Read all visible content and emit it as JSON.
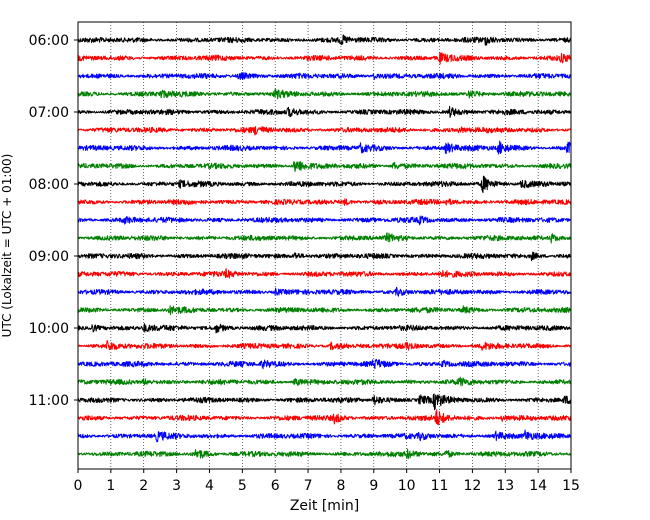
{
  "chart_data": {
    "type": "line",
    "title": "",
    "xlabel": "Zeit  [min]",
    "ylabel": "UTC (Lokalzeit = UTC + 01:00)",
    "xlim": [
      0,
      15
    ],
    "x_ticks": [
      0,
      1,
      2,
      3,
      4,
      5,
      6,
      7,
      8,
      9,
      10,
      11,
      12,
      13,
      14,
      15
    ],
    "x_tick_labels": [
      "0",
      "1",
      "2",
      "3",
      "4",
      "5",
      "6",
      "7",
      "8",
      "9",
      "10",
      "11",
      "12",
      "13",
      "14",
      "15"
    ],
    "y_tick_labels": [
      "06:00",
      "07:00",
      "08:00",
      "09:00",
      "10:00",
      "11:00"
    ],
    "vertical_grid": true,
    "trace_colors": [
      "#000000",
      "#ff0000",
      "#0000ff",
      "#008000"
    ],
    "traces": [
      {
        "start": "06:00",
        "events": [
          {
            "t": 8.0,
            "amp": 0.4
          },
          {
            "t": 12.4,
            "amp": 0.4
          }
        ]
      },
      {
        "start": "06:15",
        "events": [
          {
            "t": 11.0,
            "amp": 0.5
          },
          {
            "t": 14.7,
            "amp": 0.35
          }
        ]
      },
      {
        "start": "06:30",
        "events": [
          {
            "t": 4.9,
            "amp": 0.35
          },
          {
            "t": 9.0,
            "amp": 0.3
          }
        ]
      },
      {
        "start": "06:45",
        "events": [
          {
            "t": 2.5,
            "amp": 0.4
          },
          {
            "t": 6.0,
            "amp": 0.35
          },
          {
            "t": 11.9,
            "amp": 0.3
          }
        ]
      },
      {
        "start": "07:00",
        "events": [
          {
            "t": 6.4,
            "amp": 0.45
          },
          {
            "t": 11.3,
            "amp": 0.5
          }
        ]
      },
      {
        "start": "07:15",
        "events": [
          {
            "t": 5.4,
            "amp": 0.35
          },
          {
            "t": 11.6,
            "amp": 0.3
          }
        ]
      },
      {
        "start": "07:30",
        "events": [
          {
            "t": 8.6,
            "amp": 0.4
          },
          {
            "t": 11.2,
            "amp": 0.6
          },
          {
            "t": 12.8,
            "amp": 0.7
          },
          {
            "t": 14.9,
            "amp": 0.5
          }
        ]
      },
      {
        "start": "07:45",
        "events": [
          {
            "t": 6.6,
            "amp": 0.8
          },
          {
            "t": 9.6,
            "amp": 0.35
          }
        ]
      },
      {
        "start": "08:00",
        "events": [
          {
            "t": 3.1,
            "amp": 0.3
          },
          {
            "t": 12.3,
            "amp": 0.9
          },
          {
            "t": 13.5,
            "amp": 0.4
          }
        ]
      },
      {
        "start": "08:15",
        "events": [
          {
            "t": 8.1,
            "amp": 0.3
          },
          {
            "t": 11.2,
            "amp": 0.3
          }
        ]
      },
      {
        "start": "08:30",
        "events": [
          {
            "t": 1.4,
            "amp": 0.3
          },
          {
            "t": 10.4,
            "amp": 0.3
          }
        ]
      },
      {
        "start": "08:45",
        "events": [
          {
            "t": 9.4,
            "amp": 0.3
          },
          {
            "t": 14.4,
            "amp": 0.45
          }
        ]
      },
      {
        "start": "09:00",
        "events": [
          {
            "t": 6.6,
            "amp": 0.35
          },
          {
            "t": 13.8,
            "amp": 0.35
          }
        ]
      },
      {
        "start": "09:15",
        "events": [
          {
            "t": 4.5,
            "amp": 0.3
          },
          {
            "t": 11.0,
            "amp": 0.3
          }
        ]
      },
      {
        "start": "09:30",
        "events": [
          {
            "t": 6.0,
            "amp": 0.35
          },
          {
            "t": 9.7,
            "amp": 0.35
          }
        ]
      },
      {
        "start": "09:45",
        "events": [
          {
            "t": 2.8,
            "amp": 0.3
          },
          {
            "t": 11.7,
            "amp": 0.3
          }
        ]
      },
      {
        "start": "10:00",
        "events": [
          {
            "t": 0.4,
            "amp": 0.45
          },
          {
            "t": 2.0,
            "amp": 0.35
          },
          {
            "t": 4.2,
            "amp": 0.4
          }
        ]
      },
      {
        "start": "10:15",
        "events": [
          {
            "t": 0.9,
            "amp": 0.5
          },
          {
            "t": 7.7,
            "amp": 0.35
          },
          {
            "t": 10.0,
            "amp": 0.35
          },
          {
            "t": 12.3,
            "amp": 0.3
          }
        ]
      },
      {
        "start": "10:30",
        "events": [
          {
            "t": 5.6,
            "amp": 0.35
          },
          {
            "t": 9.0,
            "amp": 0.4
          },
          {
            "t": 11.1,
            "amp": 0.35
          }
        ]
      },
      {
        "start": "10:45",
        "events": [
          {
            "t": 2.0,
            "amp": 0.3
          },
          {
            "t": 6.6,
            "amp": 0.35
          },
          {
            "t": 11.6,
            "amp": 0.3
          }
        ]
      },
      {
        "start": "11:00",
        "events": [
          {
            "t": 9.0,
            "amp": 0.55
          },
          {
            "t": 10.4,
            "amp": 0.5
          },
          {
            "t": 10.85,
            "amp": 0.8
          },
          {
            "t": 14.8,
            "amp": 0.35
          }
        ]
      },
      {
        "start": "11:15",
        "events": [
          {
            "t": 7.8,
            "amp": 0.4
          },
          {
            "t": 10.9,
            "amp": 0.85
          },
          {
            "t": 12.9,
            "amp": 0.3
          }
        ]
      },
      {
        "start": "11:30",
        "events": [
          {
            "t": 2.4,
            "amp": 0.4
          },
          {
            "t": 10.4,
            "amp": 0.3
          },
          {
            "t": 12.7,
            "amp": 0.35
          },
          {
            "t": 13.6,
            "amp": 0.5
          }
        ]
      },
      {
        "start": "11:45",
        "events": [
          {
            "t": 3.6,
            "amp": 0.55
          },
          {
            "t": 10.0,
            "amp": 0.4
          },
          {
            "t": 11.2,
            "amp": 0.3
          }
        ]
      }
    ]
  }
}
